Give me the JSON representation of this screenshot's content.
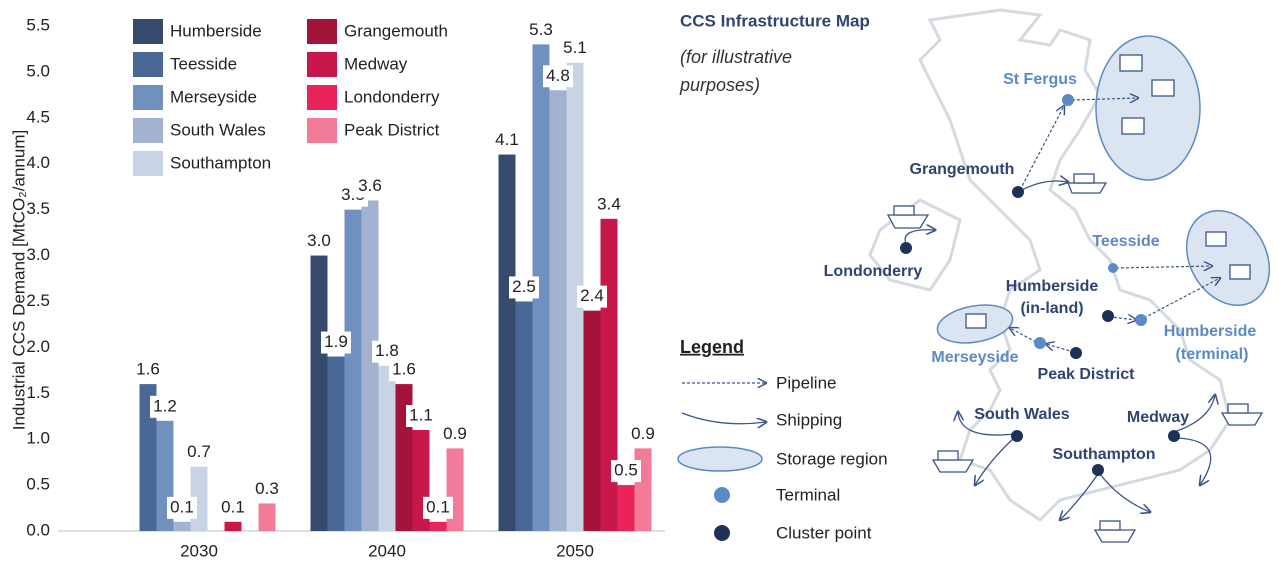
{
  "chart_data": {
    "type": "bar",
    "y_label": "Industrial CCS Demand [MtCO₂/annum]",
    "categories": [
      "2030",
      "2040",
      "2050"
    ],
    "ylim": [
      0,
      5.5
    ],
    "yticks": [
      {
        "value": 0,
        "label": "0.0"
      },
      {
        "value": 0.5,
        "label": "0.5"
      },
      {
        "value": 1,
        "label": "1.0"
      },
      {
        "value": 1.5,
        "label": "1.5"
      },
      {
        "value": 2,
        "label": "2.0"
      },
      {
        "value": 2.5,
        "label": "2.5"
      },
      {
        "value": 3,
        "label": "3.0"
      },
      {
        "value": 3.5,
        "label": "3.5"
      },
      {
        "value": 4,
        "label": "4.0"
      },
      {
        "value": 4.5,
        "label": "4.5"
      },
      {
        "value": 5,
        "label": "5.0"
      },
      {
        "value": 5.5,
        "label": "5.5"
      }
    ],
    "series": [
      {
        "name": "Humberside",
        "color": "#364a6d",
        "values": [
          null,
          3.0,
          4.1
        ],
        "value_labels": [
          null,
          "3.0",
          "4.1"
        ]
      },
      {
        "name": "Teesside",
        "color": "#4a6896",
        "values": [
          1.6,
          1.9,
          2.5
        ],
        "value_labels": [
          "1.6",
          "1.9",
          "2.5"
        ]
      },
      {
        "name": "Merseyside",
        "color": "#7090c0",
        "values": [
          1.2,
          3.5,
          5.3
        ],
        "value_labels": [
          "1.2",
          "3.5",
          "5.3"
        ]
      },
      {
        "name": "South Wales",
        "color": "#a3b2d1",
        "values": [
          0.1,
          3.6,
          4.8
        ],
        "value_labels": [
          "0.1",
          "3.6",
          "4.8"
        ]
      },
      {
        "name": "Southampton",
        "color": "#c9d3e6",
        "values": [
          0.7,
          1.8,
          5.1
        ],
        "value_labels": [
          "0.7",
          "1.8",
          "5.1"
        ]
      },
      {
        "name": "Grangemouth",
        "color": "#a3133a",
        "values": [
          null,
          1.6,
          2.4
        ],
        "value_labels": [
          null,
          "1.6",
          "2.4"
        ]
      },
      {
        "name": "Medway",
        "color": "#c8174a",
        "values": [
          0.1,
          1.1,
          3.4
        ],
        "value_labels": [
          "0.1",
          "1.1",
          "3.4"
        ]
      },
      {
        "name": "Londonderry",
        "color": "#e8245a",
        "values": [
          null,
          0.1,
          0.5
        ],
        "value_labels": [
          null,
          "0.1",
          "0.5"
        ]
      },
      {
        "name": "Peak District",
        "color": "#f17b98",
        "values": [
          0.3,
          0.9,
          0.9
        ],
        "value_labels": [
          "0.3",
          "0.9",
          "0.9"
        ]
      }
    ]
  },
  "map": {
    "title": "CCS Infrastructure Map",
    "subtitle": [
      "(for illustrative",
      "purposes)"
    ],
    "places": {
      "st_fergus": "St Fergus",
      "grangemouth": "Grangemouth",
      "londonderry": "Londonderry",
      "teesside": "Teesside",
      "humberside_inland": [
        "Humberside",
        "(in-land)"
      ],
      "humberside_terminal": [
        "Humberside",
        "(terminal)"
      ],
      "merseyside": "Merseyside",
      "peak_district": "Peak District",
      "south_wales": "South Wales",
      "medway": "Medway",
      "southampton": "Southampton"
    },
    "legend": {
      "title": "Legend",
      "items": [
        "Pipeline",
        "Shipping",
        "Storage region",
        "Terminal",
        "Cluster point"
      ]
    }
  }
}
